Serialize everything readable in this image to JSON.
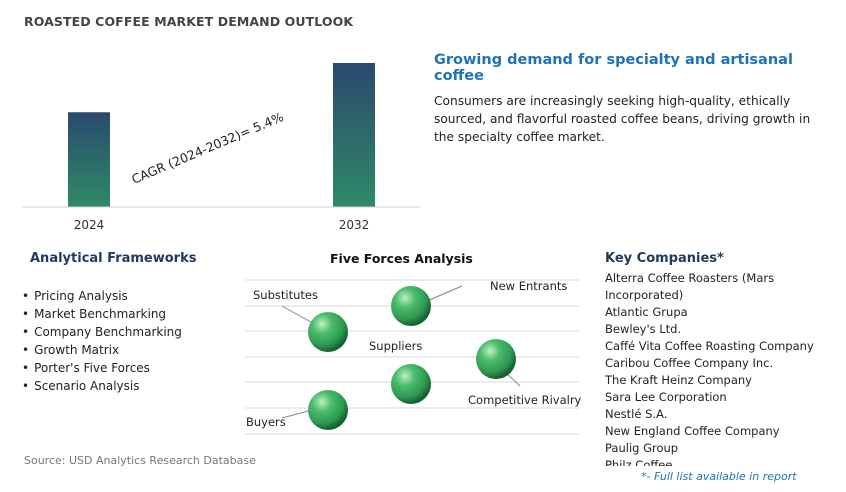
{
  "page": {
    "title": "ROASTED COFFEE MARKET DEMAND OUTLOOK",
    "source": "Source: USD Analytics Research Database"
  },
  "chart_data": {
    "type": "bar",
    "categories": [
      "2024",
      "2032"
    ],
    "values": [
      1.0,
      1.52
    ],
    "annotation": "CAGR (2024-2032)=   5.4%",
    "grid": false,
    "colors": {
      "bar_top": "#2a4a6f",
      "bar_bottom": "#2f8a66"
    }
  },
  "highlight": {
    "headline": "Growing demand for specialty and artisanal coffee",
    "description": "Consumers are increasingly seeking high-quality, ethically sourced, and flavorful roasted coffee beans, driving growth in the specialty coffee market."
  },
  "frameworks": {
    "title": "Analytical Frameworks",
    "items": [
      "Pricing Analysis",
      "Market Benchmarking",
      "Company Benchmarking",
      "Growth Matrix",
      "Porter's Five Forces",
      "Scenario Analysis"
    ]
  },
  "five_forces": {
    "title": "Five Forces Analysis",
    "labels": {
      "substitutes": "Substitutes",
      "new_entrants": "New Entrants",
      "suppliers": "Suppliers",
      "competitive_rivalry": "Competitive Rivalry",
      "buyers": "Buyers"
    },
    "sphere_color": "#2e9a52"
  },
  "companies": {
    "title": "Key Companies*",
    "items": [
      "Alterra Coffee Roasters (Mars Incorporated)",
      "Atlantic Grupa",
      "Bewley's Ltd.",
      "Caffé Vita Coffee Roasting Company",
      "Caribou Coffee Company Inc.",
      "The Kraft Heinz Company",
      "Sara Lee Corporation",
      "Nestlé S.A.",
      "New England Coffee Company",
      "Paulig Group",
      "Philz Coffee"
    ],
    "note": "*- Full list available in report"
  }
}
